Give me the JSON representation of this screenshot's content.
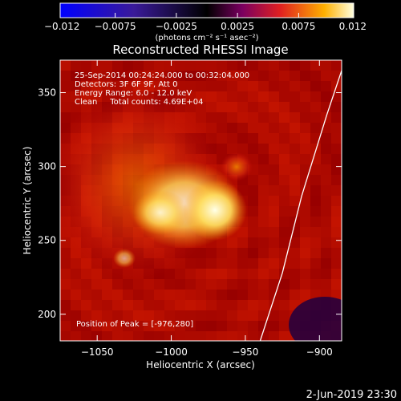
{
  "chart_data": {
    "type": "heatmap",
    "title": "Reconstructed RHESSI Image",
    "xlabel": "Heliocentric X (arcsec)",
    "ylabel": "Heliocentric Y (arcsec)",
    "xlim": [
      -1075,
      -885
    ],
    "ylim": [
      182,
      372
    ],
    "x_ticks": [
      -1050,
      -1000,
      -950,
      -900
    ],
    "x_tick_labels": [
      "−1050",
      "−1000",
      "−950",
      "−900"
    ],
    "y_ticks": [
      200,
      250,
      300,
      350
    ],
    "y_tick_labels": [
      "200",
      "250",
      "300",
      "350"
    ],
    "colorbar": {
      "range": [
        -0.012,
        0.012
      ],
      "ticks": [
        -0.012,
        -0.0075,
        -0.0025,
        0.0025,
        0.0075,
        0.012
      ],
      "tick_labels": [
        "−0.012",
        "−0.0075",
        "−0.0025",
        "0.0025",
        "0.0075",
        "0.012"
      ],
      "units": "(photons cm⁻² s⁻¹ asec⁻²)"
    },
    "info_lines": [
      "25-Sep-2014 00:24:24.000 to 00:32:04.000",
      "Detectors: 3F 6F 9F, Att 0",
      "Energy Range: 6.0 - 12.0 keV",
      "Clean     Total counts: 4.69E+04"
    ],
    "peak_label": "Position of Peak = [-976,280]",
    "peak": [
      -976,
      280
    ],
    "limb_points": [
      [
        -940,
        182
      ],
      [
        -925,
        228
      ],
      [
        -912,
        280
      ],
      [
        -895,
        335
      ],
      [
        -885,
        365
      ]
    ]
  },
  "footer": {
    "date": "2-Jun-2019 23:30"
  },
  "colors": {
    "background": "#000000",
    "text": "#ffffff"
  }
}
